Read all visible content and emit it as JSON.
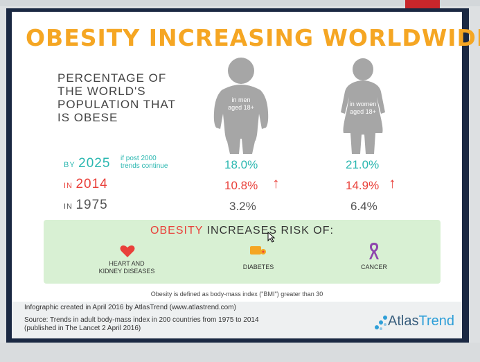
{
  "title": "OBESITY INCREASING WORLDWIDE",
  "subtitle_lines": [
    "PERCENTAGE OF",
    "THE WORLD'S",
    "POPULATION THAT",
    "IS OBESE"
  ],
  "figures": {
    "men": {
      "line1": "in men",
      "line2": "aged 18+"
    },
    "women": {
      "line1": "in women",
      "line2": "aged 18+"
    }
  },
  "rows": {
    "r2025": {
      "prefix": "BY",
      "year": "2025",
      "note_line1": "if post 2000",
      "note_line2": "trends continue",
      "men": "18.0%",
      "women": "21.0%"
    },
    "r2014": {
      "prefix": "IN",
      "year": "2014",
      "men": "10.8%",
      "women": "14.9%",
      "arrow": "↑"
    },
    "r1975": {
      "prefix": "IN",
      "year": "1975",
      "men": "3.2%",
      "women": "6.4%"
    }
  },
  "risk": {
    "title_highlight": "OBESITY",
    "title_rest": "INCREASES RISK OF:",
    "items": {
      "heart": {
        "line1": "HEART AND",
        "line2": "KIDNEY DISEASES",
        "icon": "heart-icon"
      },
      "diabetes": {
        "line1": "DIABETES",
        "icon": "pill-icon"
      },
      "cancer": {
        "line1": "CANCER",
        "icon": "ribbon-icon"
      }
    }
  },
  "definition": "Obesity is defined as body-mass index (\"BMI\") greater than 30",
  "footer": {
    "credit": "Infographic created in April 2016 by AtlasTrend (www.atlastrend.com)",
    "source_line1": "Source: Trends in adult body-mass index in 200 countries from 1975 to 2014",
    "source_line2": "(published in The Lancet 2 April 2016)",
    "logo_part1": "Atlas",
    "logo_part2": "Trend"
  },
  "colors": {
    "title": "#f5a623",
    "teal": "#2ab7b0",
    "red": "#e9403a",
    "risk_bg": "#d8f0d3",
    "figure": "#a6a6a6",
    "frame": "#1a2842"
  }
}
